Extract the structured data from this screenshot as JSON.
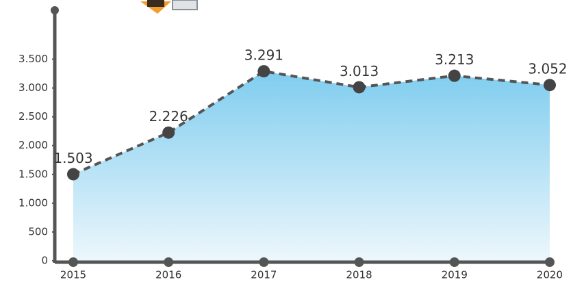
{
  "chart_data": {
    "type": "area",
    "categories": [
      "2015",
      "2016",
      "2017",
      "2018",
      "2019",
      "2020"
    ],
    "values": [
      1503,
      2226,
      3291,
      3013,
      3213,
      3052
    ],
    "value_labels": [
      "1.503",
      "2.226",
      "3.291",
      "3.013",
      "3.213",
      "3.052"
    ],
    "color": "#7fcdef",
    "line_color": "#555555",
    "ylim": [
      0,
      4350
    ],
    "yticks": [
      0,
      500,
      {
        "value": 1000,
        "label": "1.000"
      },
      {
        "value": 1500,
        "label": "1.500"
      },
      {
        "value": 2000,
        "label": "2.000"
      },
      {
        "value": 2500,
        "label": "2.500"
      },
      {
        "value": 3000,
        "label": "3.000"
      },
      {
        "value": 3500,
        "label": "3.500"
      }
    ],
    "grid": false
  }
}
